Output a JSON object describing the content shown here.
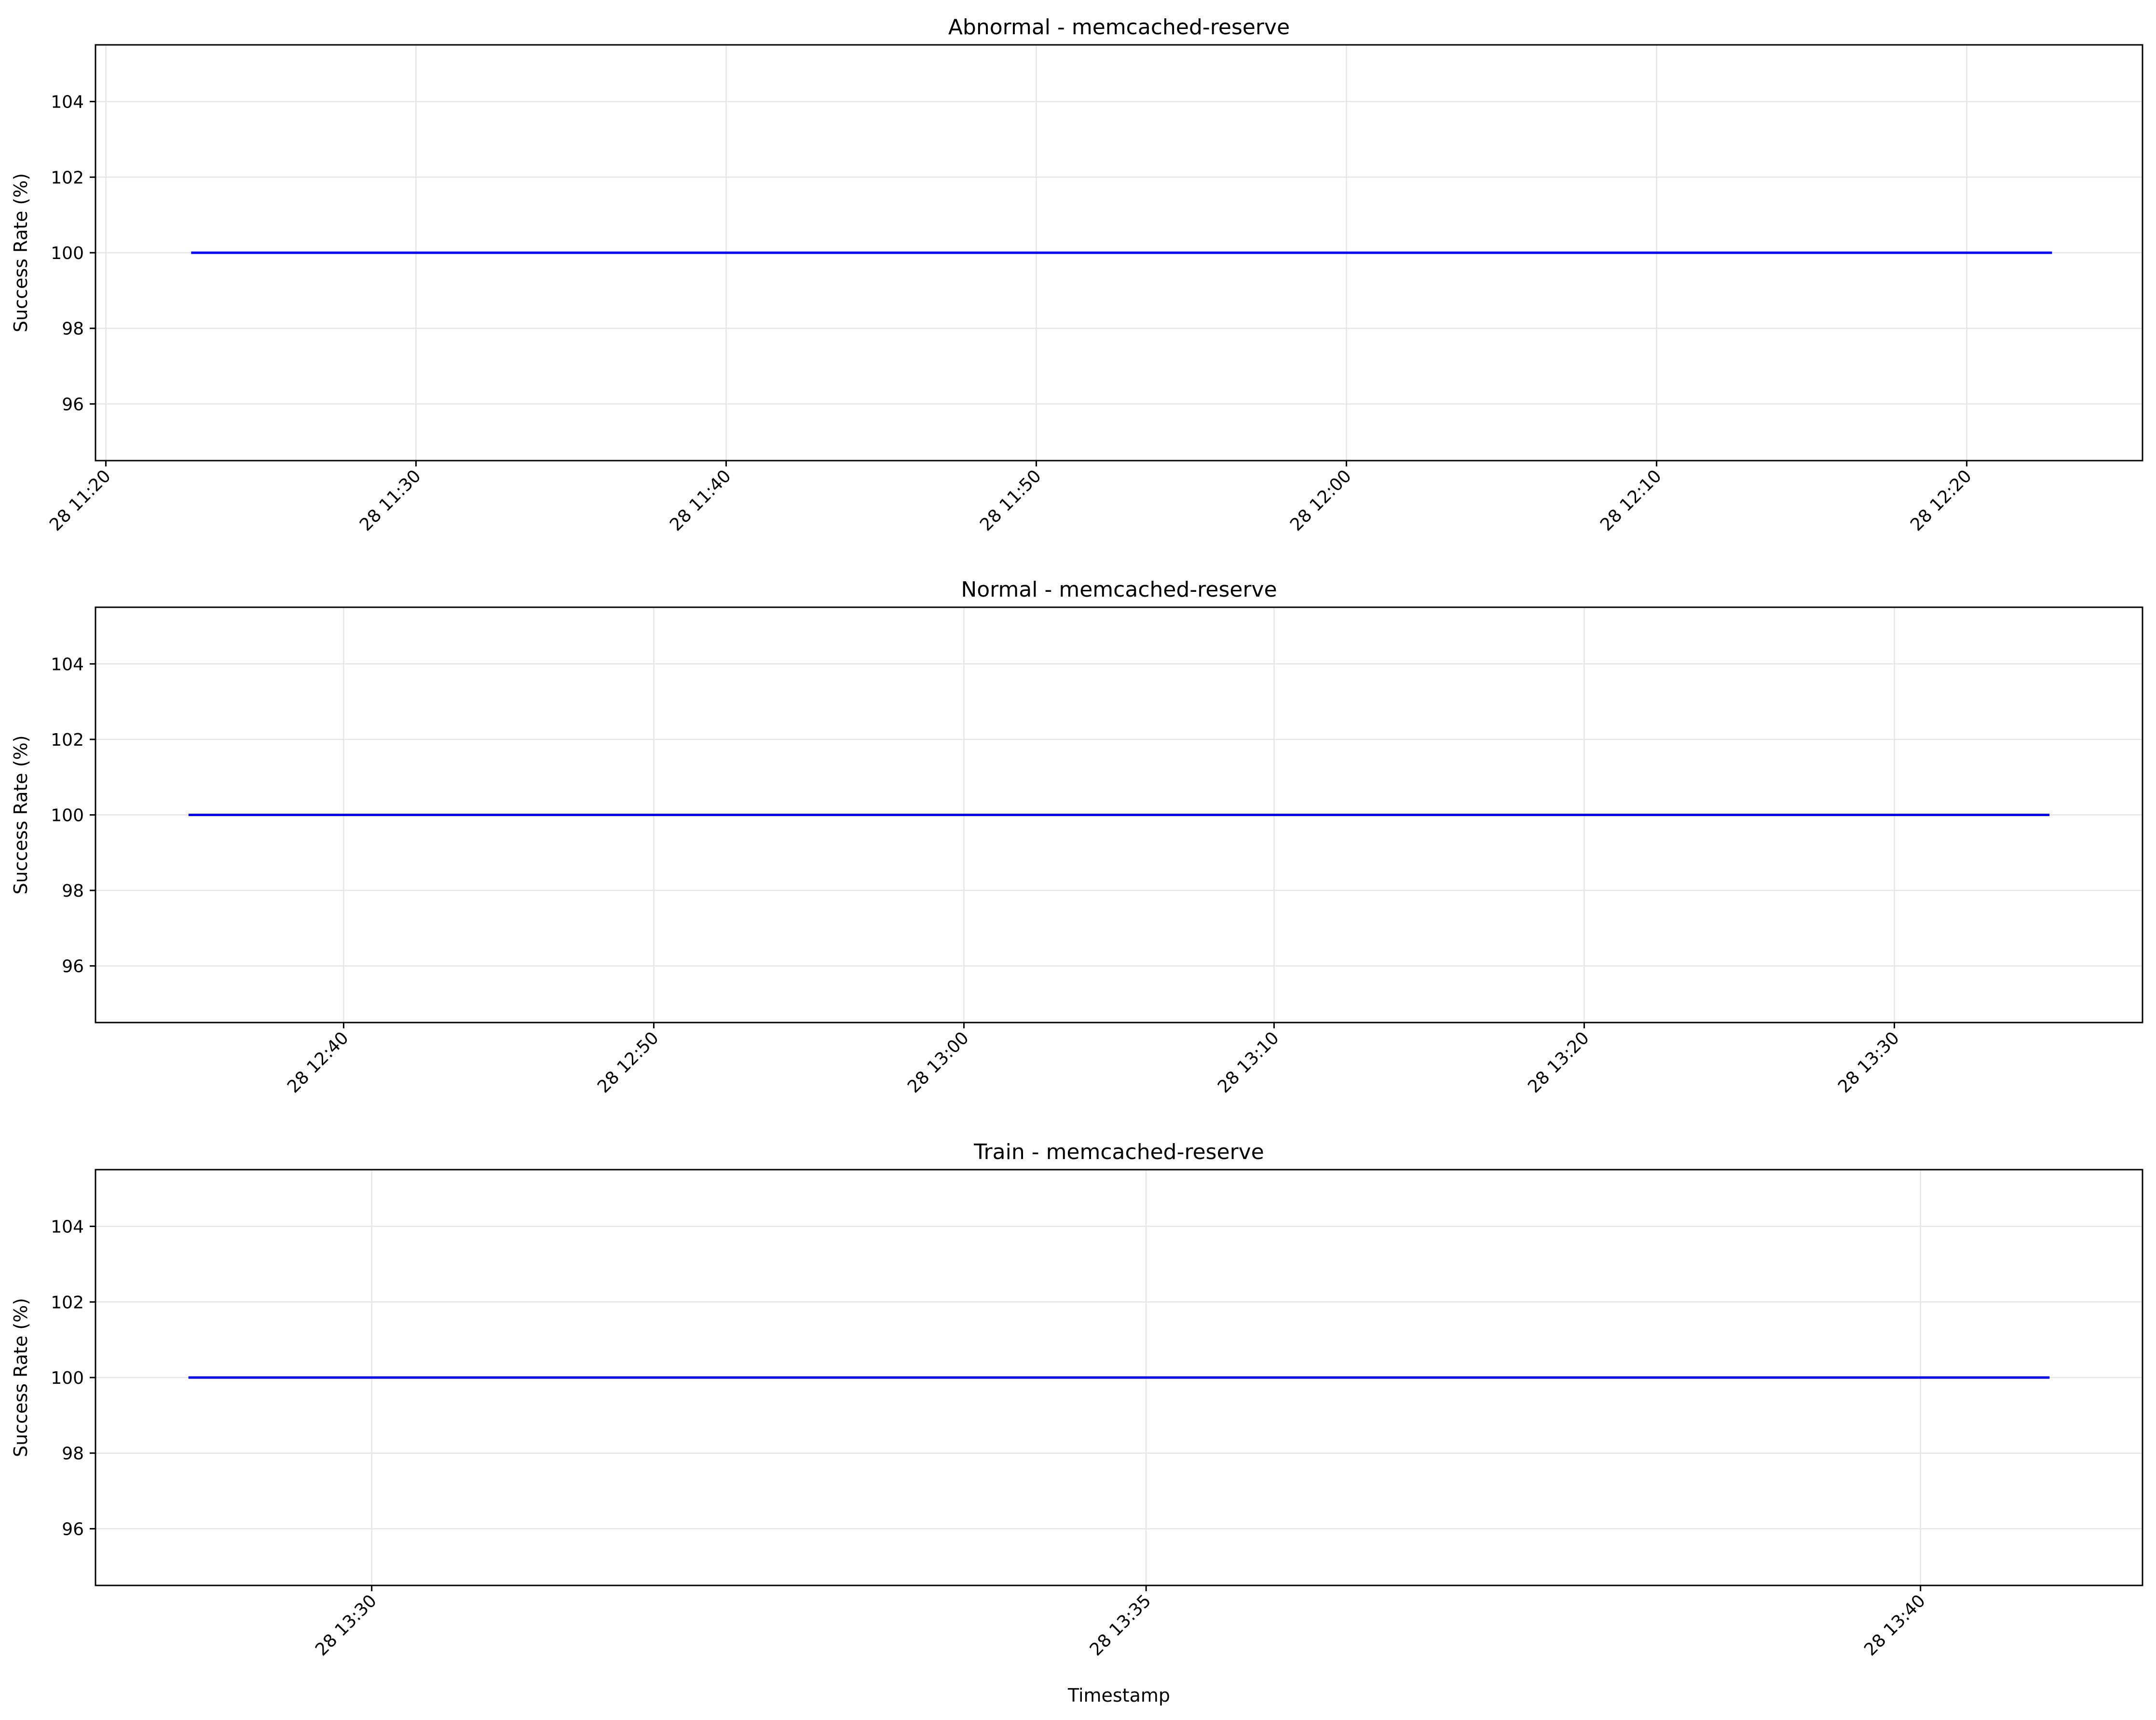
{
  "chart_data": [
    {
      "type": "line",
      "title": "Abnormal - memcached-reserve",
      "xlabel": "",
      "ylabel": "Success Rate (%)",
      "ylim": [
        94.5,
        105.5
      ],
      "yticks": [
        96,
        98,
        100,
        102,
        104
      ],
      "xlim": [
        "2025-01-28 11:19:40",
        "2025-01-28 12:25:40"
      ],
      "xticks": [
        {
          "t": "2025-01-28 11:20:00",
          "label": "28 11:20"
        },
        {
          "t": "2025-01-28 11:30:00",
          "label": "28 11:30"
        },
        {
          "t": "2025-01-28 11:40:00",
          "label": "28 11:40"
        },
        {
          "t": "2025-01-28 11:50:00",
          "label": "28 11:50"
        },
        {
          "t": "2025-01-28 12:00:00",
          "label": "28 12:00"
        },
        {
          "t": "2025-01-28 12:10:00",
          "label": "28 12:10"
        },
        {
          "t": "2025-01-28 12:20:00",
          "label": "28 12:20"
        }
      ],
      "grid": true,
      "series": [
        {
          "color": "#0000ff",
          "x": [
            "2025-01-28 11:22:45",
            "2025-01-28 12:22:45"
          ],
          "y": [
            100,
            100
          ]
        }
      ]
    },
    {
      "type": "line",
      "title": "Normal - memcached-reserve",
      "xlabel": "",
      "ylabel": "Success Rate (%)",
      "ylim": [
        94.5,
        105.5
      ],
      "yticks": [
        96,
        98,
        100,
        102,
        104
      ],
      "xlim": [
        "2025-01-28 12:32:00",
        "2025-01-28 13:38:00"
      ],
      "xticks": [
        {
          "t": "2025-01-28 12:40:00",
          "label": "28 12:40"
        },
        {
          "t": "2025-01-28 12:50:00",
          "label": "28 12:50"
        },
        {
          "t": "2025-01-28 13:00:00",
          "label": "28 13:00"
        },
        {
          "t": "2025-01-28 13:10:00",
          "label": "28 13:10"
        },
        {
          "t": "2025-01-28 13:20:00",
          "label": "28 13:20"
        },
        {
          "t": "2025-01-28 13:30:00",
          "label": "28 13:30"
        }
      ],
      "grid": true,
      "series": [
        {
          "color": "#0000ff",
          "x": [
            "2025-01-28 12:35:00",
            "2025-01-28 13:35:00"
          ],
          "y": [
            100,
            100
          ]
        }
      ]
    },
    {
      "type": "line",
      "title": "Train - memcached-reserve",
      "xlabel": "Timestamp",
      "ylabel": "Success Rate (%)",
      "ylim": [
        94.5,
        105.5
      ],
      "yticks": [
        96,
        98,
        100,
        102,
        104
      ],
      "xlim": [
        "2025-01-28 13:28:13",
        "2025-01-28 13:41:26"
      ],
      "xticks": [
        {
          "t": "2025-01-28 13:30:00",
          "label": "28 13:30"
        },
        {
          "t": "2025-01-28 13:35:00",
          "label": "28 13:35"
        },
        {
          "t": "2025-01-28 13:40:00",
          "label": "28 13:40"
        }
      ],
      "grid": true,
      "series": [
        {
          "color": "#0000ff",
          "x": [
            "2025-01-28 13:28:49",
            "2025-01-28 13:40:50"
          ],
          "y": [
            100,
            100
          ]
        }
      ]
    }
  ]
}
